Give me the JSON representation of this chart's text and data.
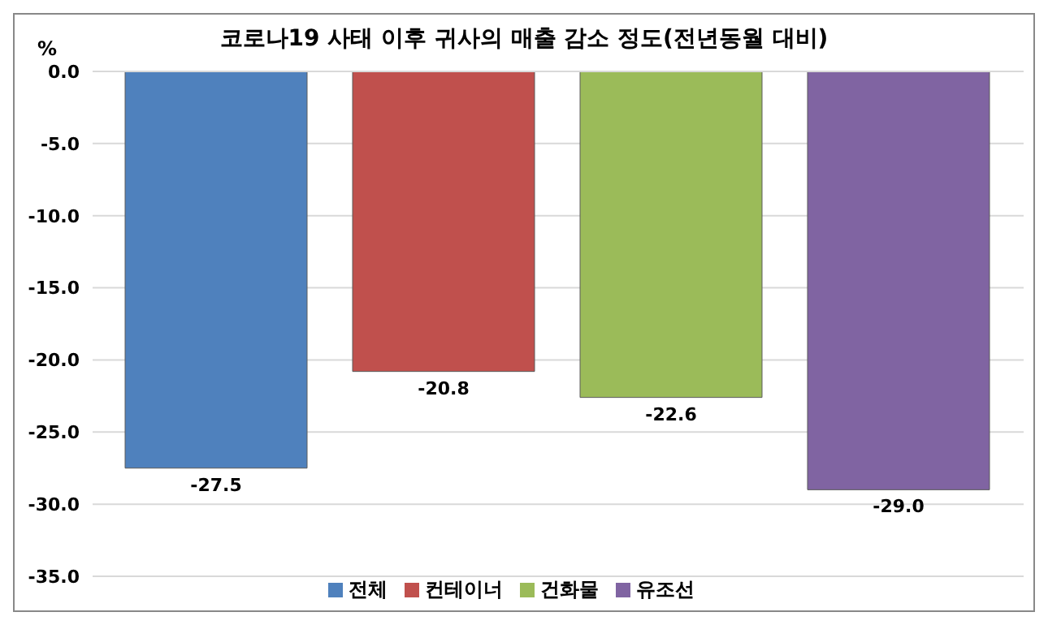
{
  "chart_data": {
    "type": "bar",
    "title": "코로나19 사태 이후 귀사의 매출 감소 정도(전년동월 대비)",
    "ylabel": "%",
    "categories": [
      null
    ],
    "series": [
      {
        "name": "전체",
        "color": "#4f81bd",
        "values": [
          -27.5
        ],
        "value_labels": [
          "-27.5"
        ]
      },
      {
        "name": "컨테이너",
        "color": "#c0504d",
        "values": [
          -20.8
        ],
        "value_labels": [
          "-20.8"
        ]
      },
      {
        "name": "건화물",
        "color": "#9bbb59",
        "values": [
          -22.6
        ],
        "value_labels": [
          "-22.6"
        ]
      },
      {
        "name": "유조선",
        "color": "#8064a2",
        "values": [
          -29.0
        ],
        "value_labels": [
          "-29.0"
        ]
      }
    ],
    "ylim": [
      -35,
      0
    ],
    "yticks": [
      {
        "value": 0,
        "label": "0.0"
      },
      {
        "value": -5,
        "label": "-5.0"
      },
      {
        "value": -10,
        "label": "-10.0"
      },
      {
        "value": -15,
        "label": "-15.0"
      },
      {
        "value": -20,
        "label": "-20.0"
      },
      {
        "value": -25,
        "label": "-25.0"
      },
      {
        "value": -30,
        "label": "-30.0"
      },
      {
        "value": -35,
        "label": "-35.0"
      }
    ],
    "grid": "y",
    "legend": "bottom"
  }
}
